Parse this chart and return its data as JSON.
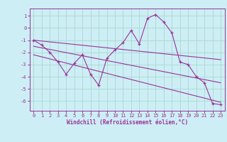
{
  "xlabel": "Windchill (Refroidissement éolien,°C)",
  "background_color": "#cdeef5",
  "grid_color": "#a8d8d0",
  "line_color": "#993399",
  "spine_color": "#993399",
  "xlim": [
    -0.5,
    23.5
  ],
  "ylim": [
    -6.8,
    1.6
  ],
  "yticks": [
    1,
    0,
    -1,
    -2,
    -3,
    -4,
    -5,
    -6
  ],
  "xticks": [
    0,
    1,
    2,
    3,
    4,
    5,
    6,
    7,
    8,
    9,
    10,
    11,
    12,
    13,
    14,
    15,
    16,
    17,
    18,
    19,
    20,
    21,
    22,
    23
  ],
  "series1_x": [
    0,
    1,
    2,
    3,
    4,
    5,
    6,
    7,
    8,
    9,
    10,
    11,
    12,
    13,
    14,
    15,
    16,
    17,
    18,
    19,
    20,
    21,
    22,
    23
  ],
  "series1_y": [
    -1.0,
    -1.4,
    -2.0,
    -2.8,
    -3.8,
    -2.9,
    -2.2,
    -3.8,
    -4.7,
    -2.5,
    -1.8,
    -1.2,
    -0.2,
    -1.3,
    0.8,
    1.1,
    0.5,
    -0.4,
    -2.8,
    -3.0,
    -4.0,
    -4.5,
    -6.2,
    -6.3
  ],
  "series2_x": [
    0,
    23
  ],
  "series2_y": [
    -1.0,
    -2.6
  ],
  "series3_x": [
    0,
    23
  ],
  "series3_y": [
    -1.5,
    -4.5
  ],
  "series4_x": [
    0,
    23
  ],
  "series4_y": [
    -2.2,
    -6.1
  ],
  "tick_labelsize": 5,
  "xlabel_fontsize": 5.5
}
